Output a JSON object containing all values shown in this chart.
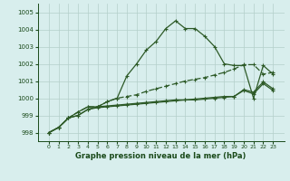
{
  "xlabel": "Graphe pression niveau de la mer (hPa)",
  "x": [
    0,
    1,
    2,
    3,
    4,
    5,
    6,
    7,
    8,
    9,
    10,
    11,
    12,
    13,
    14,
    15,
    16,
    17,
    18,
    19,
    20,
    21,
    22,
    23
  ],
  "line_peak": [
    998.0,
    998.3,
    998.85,
    999.2,
    999.5,
    999.5,
    999.8,
    1000.0,
    1001.3,
    1002.0,
    1002.8,
    1003.3,
    1004.05,
    1004.5,
    1004.05,
    1004.05,
    1003.6,
    1003.0,
    1002.0,
    1001.9,
    1001.9,
    1000.0,
    1001.9,
    1001.4
  ],
  "line_slope": [
    998.0,
    998.3,
    998.85,
    999.2,
    999.5,
    999.5,
    999.8,
    1000.0,
    1000.1,
    1000.2,
    1000.4,
    1000.55,
    1000.7,
    1000.85,
    1001.0,
    1001.1,
    1001.2,
    1001.35,
    1001.5,
    1001.7,
    1001.95,
    1001.95,
    1001.4,
    1001.5
  ],
  "line_flat1": [
    998.0,
    998.3,
    998.85,
    999.0,
    999.35,
    999.5,
    999.55,
    999.6,
    999.65,
    999.7,
    999.75,
    999.8,
    999.85,
    999.9,
    999.9,
    999.95,
    1000.0,
    1000.05,
    1000.1,
    1000.1,
    1000.5,
    1000.35,
    1000.95,
    1000.55
  ],
  "line_flat2": [
    998.0,
    998.3,
    998.85,
    999.0,
    999.35,
    999.45,
    999.5,
    999.55,
    999.6,
    999.65,
    999.7,
    999.75,
    999.8,
    999.85,
    999.9,
    999.9,
    999.95,
    1000.0,
    1000.05,
    1000.1,
    1000.45,
    1000.25,
    1000.85,
    1000.45
  ],
  "line_color": "#2d5a27",
  "line_color_dotted": "#2d5a27",
  "bg_color": "#d8eeed",
  "grid_color": "#b4cfca",
  "text_color": "#1a4a1a",
  "ylim": [
    997.5,
    1005.5
  ],
  "yticks": [
    998,
    999,
    1000,
    1001,
    1002,
    1003,
    1004,
    1005
  ],
  "xticks": [
    0,
    1,
    2,
    3,
    4,
    5,
    6,
    7,
    8,
    9,
    10,
    11,
    12,
    13,
    14,
    15,
    16,
    17,
    18,
    19,
    20,
    21,
    22,
    23
  ]
}
